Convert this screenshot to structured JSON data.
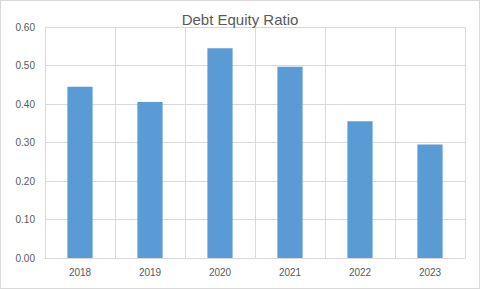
{
  "chart_data": {
    "type": "bar",
    "title": "Debt Equity Ratio",
    "categories": [
      "2018",
      "2019",
      "2020",
      "2021",
      "2022",
      "2023"
    ],
    "values": [
      0.445,
      0.405,
      0.545,
      0.497,
      0.355,
      0.295
    ],
    "color": "#5b9bd5",
    "ylim": [
      0,
      0.6
    ],
    "yticks": [
      {
        "value": 0,
        "label": "0.00"
      },
      {
        "value": 0.1,
        "label": "0.10"
      },
      {
        "value": 0.2,
        "label": "0.20"
      },
      {
        "value": 0.3,
        "label": "0.30"
      },
      {
        "value": 0.4,
        "label": "0.40"
      },
      {
        "value": 0.5,
        "label": "0.50"
      },
      {
        "value": 0.6,
        "label": "0.60"
      }
    ],
    "grid": true
  }
}
